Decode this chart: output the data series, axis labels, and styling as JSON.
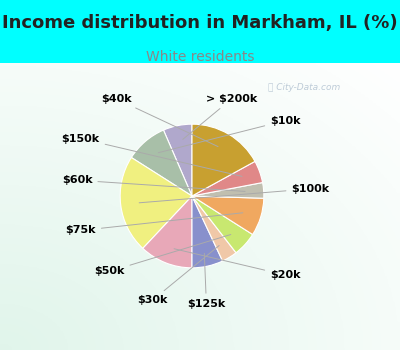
{
  "title": "Income distribution in Markham, IL (%)",
  "subtitle": "White residents",
  "labels": [
    "> $200k",
    "$10k",
    "$100k",
    "$20k",
    "$125k",
    "$30k",
    "$50k",
    "$75k",
    "$60k",
    "$150k",
    "$40k"
  ],
  "values": [
    6.5,
    9.5,
    22.0,
    12.0,
    7.0,
    3.5,
    5.5,
    8.5,
    3.5,
    5.0,
    17.0
  ],
  "colors": [
    "#b0a8cc",
    "#a8bfa8",
    "#f0f080",
    "#e8a8b8",
    "#8890cc",
    "#f0c8a8",
    "#c8e870",
    "#f0a860",
    "#c0bfb0",
    "#e08888",
    "#c8a030"
  ],
  "background_top": "#00ffff",
  "title_color": "#222222",
  "subtitle_color": "#888888",
  "title_fontsize": 13,
  "subtitle_fontsize": 10,
  "label_fontsize": 8,
  "startangle": 90,
  "watermark": "City-Data.com"
}
